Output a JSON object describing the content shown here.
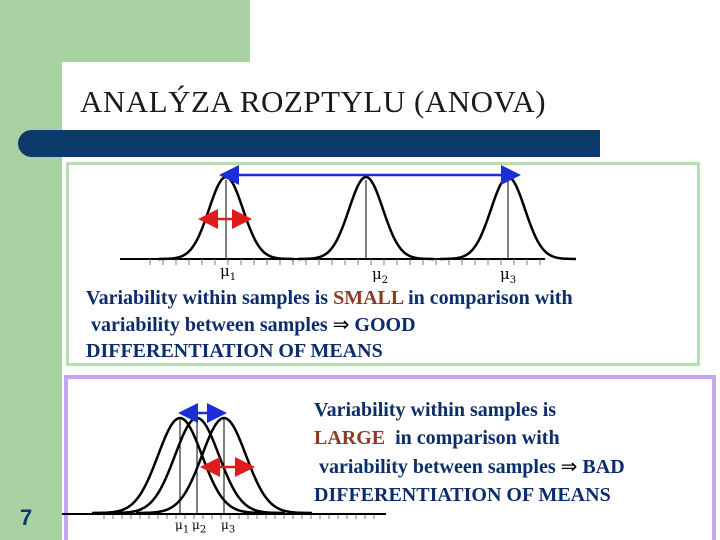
{
  "slide": {
    "title": "ANALÝZA ROZPTYLU (ANOVA)",
    "page_number": "7"
  },
  "panel1": {
    "mu_labels": [
      "μ1",
      "μ2",
      "μ3"
    ],
    "text": {
      "line1_pre": "Variability within samples",
      "line1_mid": " is ",
      "line1_hl": "SMALL",
      "line1_post": " in comparison with",
      "line2": " variability between samples ",
      "line2_arrow": "⇒",
      "line2_post": " GOOD",
      "line3": "DIFFERENTIATION OF MEANS"
    }
  },
  "panel2": {
    "mu_labels": [
      "μ1",
      "μ2",
      "μ3"
    ],
    "text": {
      "line1": "Variability within samples is",
      "line2_hl": "LARGE",
      "line2_post": "  in comparison with",
      "line3": " variability between samples ",
      "line3_arrow": "⇒",
      "line3_post": " BAD",
      "line4": "DIFFERENTIATION OF MEANS"
    }
  },
  "colors": {
    "green": "#a9d1a4",
    "navy": "#0b3a6b",
    "text_blue": "#0b2d6b",
    "highlight": "#8b3a25",
    "arrow_red": "#e01b1b",
    "arrow_blue": "#1c2fd6",
    "panel2_border": "#c4a6f2"
  }
}
